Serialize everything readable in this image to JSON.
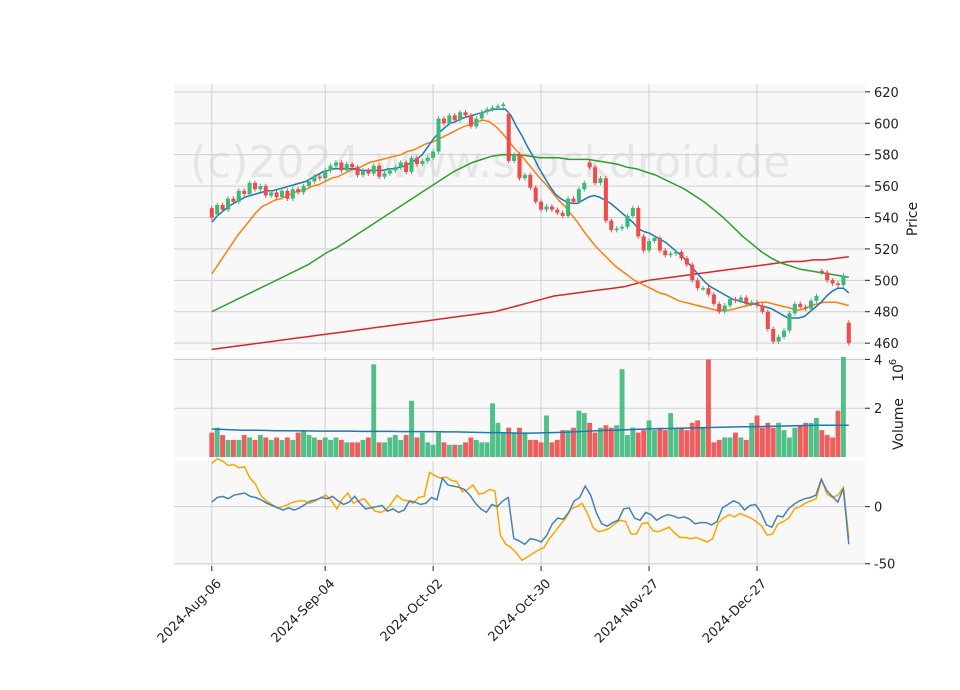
{
  "watermark": "(c)2024 www.stockdroid.de",
  "colors": {
    "up": "#3cb97a",
    "down": "#ee4b4b",
    "sma_short": "#1f77b4",
    "sma_mid": "#ff7f0e",
    "sma_long": "#2ca02c",
    "sma_200": "#d62728",
    "macd": "#4682b4",
    "signal": "#ffa500",
    "grid": "#d0d0d0",
    "panel_bg": "#f8f8f8"
  },
  "chart_data": [
    {
      "type": "candlestick",
      "ylabel": "Price",
      "ylim": [
        455,
        625
      ],
      "yticks": [
        460,
        480,
        500,
        520,
        540,
        560,
        580,
        600,
        620
      ],
      "x_tick_labels": [
        "2024-Aug-06",
        "2024-Sep-04",
        "2024-Oct-02",
        "2024-Oct-30",
        "2024-Nov-27",
        "2024-Dec-27"
      ],
      "x_tick_index": [
        0,
        21,
        41,
        61,
        81,
        101
      ],
      "x_range": [
        -7,
        121
      ],
      "close": [
        540,
        548,
        545,
        552,
        550,
        557,
        555,
        562,
        558,
        560,
        554,
        556,
        553,
        557,
        552,
        558,
        556,
        560,
        563,
        566,
        565,
        570,
        573,
        575,
        570,
        574,
        572,
        567,
        570,
        568,
        573,
        566,
        568,
        570,
        572,
        575,
        569,
        578,
        574,
        576,
        578,
        582,
        603,
        600,
        605,
        602,
        607,
        605,
        598,
        603,
        607,
        609,
        610,
        611,
        612,
        576,
        580,
        565,
        567,
        559,
        550,
        545,
        547,
        545,
        543,
        541,
        552,
        550,
        558,
        562,
        572,
        562,
        565,
        538,
        532,
        533,
        534,
        541,
        546,
        528,
        519,
        525,
        527,
        519,
        516,
        517,
        518,
        514,
        510,
        500,
        495,
        495,
        491,
        485,
        480,
        484,
        488,
        487,
        489,
        485,
        486,
        484,
        480,
        469,
        461,
        464,
        468,
        479,
        485,
        483,
        482,
        487,
        490,
        505,
        500,
        498,
        497,
        503,
        460
      ],
      "open": [
        546,
        542,
        548,
        545,
        552,
        550,
        557,
        555,
        562,
        558,
        560,
        554,
        556,
        553,
        557,
        552,
        558,
        556,
        560,
        563,
        566,
        565,
        570,
        573,
        575,
        570,
        574,
        572,
        567,
        570,
        568,
        573,
        566,
        568,
        570,
        572,
        575,
        569,
        578,
        574,
        576,
        578,
        582,
        603,
        600,
        605,
        602,
        607,
        605,
        598,
        603,
        607,
        609,
        610,
        611,
        606,
        576,
        580,
        565,
        567,
        559,
        550,
        545,
        547,
        545,
        543,
        541,
        552,
        550,
        558,
        575,
        572,
        562,
        565,
        538,
        532,
        533,
        534,
        541,
        546,
        528,
        519,
        525,
        527,
        519,
        516,
        517,
        518,
        514,
        510,
        500,
        495,
        495,
        491,
        485,
        480,
        484,
        488,
        487,
        489,
        485,
        486,
        484,
        480,
        469,
        461,
        464,
        468,
        479,
        485,
        483,
        482,
        487,
        506,
        505,
        500,
        498,
        497,
        473
      ],
      "sma20": [
        537,
        541,
        544,
        547,
        549,
        551,
        553,
        554,
        555,
        556,
        557,
        557,
        558,
        559,
        560,
        561,
        562,
        563,
        565,
        567,
        569,
        570,
        571,
        571,
        571,
        571,
        571,
        570,
        570,
        570,
        570,
        570,
        571,
        571,
        572,
        573,
        575,
        577,
        580,
        585,
        590,
        594,
        597,
        600,
        601,
        603,
        604,
        605,
        606,
        607,
        608,
        609,
        609,
        609,
        605,
        598,
        592,
        585,
        579,
        572,
        566,
        560,
        555,
        552,
        550,
        549,
        549,
        551,
        553,
        554,
        553,
        551,
        549,
        546,
        543,
        540,
        537,
        533,
        531,
        530,
        528,
        526,
        524,
        521,
        518,
        515,
        511,
        507,
        503,
        499,
        496,
        494,
        492,
        490,
        488,
        487,
        486,
        485,
        485,
        484,
        483,
        482,
        480,
        478,
        476,
        476,
        476,
        477,
        480,
        483,
        486,
        490,
        493,
        495,
        495,
        492
      ],
      "sma50": [
        504,
        510,
        516,
        522,
        528,
        533,
        538,
        543,
        547,
        549,
        551,
        552,
        554,
        556,
        557,
        558,
        560,
        561,
        563,
        565,
        566,
        568,
        570,
        571,
        573,
        575,
        576,
        577,
        578,
        579,
        580,
        582,
        583,
        585,
        587,
        588,
        590,
        592,
        594,
        596,
        598,
        599,
        601,
        602,
        601,
        598,
        594,
        589,
        584,
        580,
        575,
        570,
        565,
        561,
        556,
        551,
        547,
        542,
        537,
        531,
        526,
        521,
        517,
        513,
        509,
        506,
        503,
        500,
        498,
        496,
        494,
        492,
        491,
        489,
        487,
        486,
        485,
        484,
        483,
        482,
        481,
        481,
        481,
        482,
        483,
        484,
        485,
        486,
        486,
        485,
        484,
        483,
        482,
        481,
        482,
        484,
        485,
        486,
        486,
        486,
        485,
        484
      ],
      "sma100": [
        480,
        483,
        486,
        489,
        492,
        495,
        498,
        501,
        504,
        507,
        510,
        514,
        518,
        521,
        525,
        529,
        533,
        537,
        541,
        545,
        549,
        553,
        557,
        561,
        565,
        569,
        572,
        575,
        577,
        579,
        580,
        580,
        580,
        579,
        578,
        578,
        578,
        577,
        577,
        577,
        576,
        575,
        574,
        572,
        571,
        569,
        567,
        564,
        561,
        558,
        554,
        550,
        545,
        540,
        534,
        528,
        523,
        518,
        514,
        511,
        509,
        507,
        506,
        505,
        504,
        503,
        502
      ],
      "sma200": [
        456,
        457,
        458,
        459,
        460,
        461,
        462,
        463,
        464,
        465,
        466,
        467,
        468,
        469,
        470,
        471,
        472,
        473,
        474,
        475,
        476,
        477,
        478,
        479,
        480,
        482,
        484,
        486,
        488,
        490,
        491,
        492,
        493,
        494,
        495,
        496,
        498,
        500,
        501,
        502,
        503,
        504,
        505,
        506,
        507,
        508,
        509,
        510,
        511,
        512,
        512,
        513,
        513,
        514,
        515
      ]
    },
    {
      "type": "bar",
      "ylabel": "Volume",
      "unit_exponent": 6,
      "ylim": [
        0,
        4.1
      ],
      "yticks": [
        2,
        4
      ],
      "volume": [
        1.0,
        1.2,
        0.9,
        0.7,
        0.7,
        0.7,
        0.9,
        0.8,
        0.7,
        0.9,
        0.8,
        0.7,
        0.8,
        0.7,
        0.8,
        0.7,
        1.0,
        1.1,
        0.9,
        0.8,
        0.7,
        0.8,
        0.7,
        0.8,
        0.7,
        0.6,
        0.6,
        0.6,
        0.7,
        0.8,
        3.8,
        0.6,
        0.6,
        0.8,
        0.9,
        0.7,
        0.9,
        2.3,
        0.8,
        1.0,
        0.6,
        0.5,
        1.0,
        0.6,
        0.5,
        0.5,
        0.5,
        0.6,
        0.8,
        0.7,
        0.6,
        0.6,
        2.2,
        1.4,
        1.0,
        1.2,
        1.0,
        1.2,
        1.0,
        0.7,
        0.7,
        0.6,
        1.7,
        0.6,
        0.7,
        1.1,
        1.1,
        1.2,
        1.9,
        1.8,
        1.4,
        1.0,
        1.2,
        1.3,
        1.2,
        1.3,
        3.6,
        0.9,
        1.2,
        1.0,
        1.1,
        1.5,
        1.1,
        1.2,
        1.1,
        1.8,
        1.2,
        1.2,
        1.1,
        1.4,
        1.5,
        1.2,
        4.0,
        0.6,
        0.7,
        0.8,
        0.8,
        1.0,
        0.8,
        0.7,
        1.4,
        1.7,
        1.2,
        1.4,
        1.2,
        1.4,
        1.1,
        0.8,
        1.2,
        1.3,
        1.4,
        1.4,
        1.6,
        1.1,
        0.9,
        0.8,
        1.9,
        4.1
      ],
      "avg": [
        1.15,
        1.13,
        1.11,
        1.1,
        1.1,
        1.09,
        1.08,
        1.08,
        1.07,
        1.07,
        1.06,
        1.06,
        1.06,
        1.06,
        1.05,
        1.05,
        1.05,
        1.05,
        1.04,
        1.04,
        1.04,
        1.04,
        1.03,
        1.03,
        1.02,
        1.01,
        1.0,
        1.0,
        0.99,
        0.98,
        0.98,
        0.99,
        1.0,
        1.01,
        1.03,
        1.05,
        1.07,
        1.09,
        1.1,
        1.12,
        1.13,
        1.15,
        1.16,
        1.17,
        1.18,
        1.19,
        1.2,
        1.21,
        1.22,
        1.23,
        1.24,
        1.24,
        1.25,
        1.26,
        1.27,
        1.28,
        1.29,
        1.3,
        1.3,
        1.3,
        1.3
      ]
    },
    {
      "type": "line",
      "ylim": [
        -52,
        40
      ],
      "yticks": [
        -50,
        0
      ],
      "macd": [
        4,
        8,
        9,
        7,
        10,
        11,
        12,
        9,
        8,
        6,
        3,
        1,
        -1,
        -3,
        -1,
        -3,
        -1,
        2,
        5,
        6,
        8,
        7,
        9,
        5,
        2,
        4,
        9,
        3,
        -2,
        -1,
        0,
        1,
        -4,
        -2,
        -5,
        -3,
        5,
        4,
        2,
        3,
        8,
        6,
        25,
        19,
        18,
        17,
        15,
        10,
        3,
        -2,
        -5,
        2,
        0,
        5,
        8,
        -28,
        -30,
        -33,
        -28,
        -29,
        -31,
        -25,
        -15,
        -10,
        -11,
        -5,
        5,
        8,
        18,
        10,
        -5,
        -15,
        -17,
        -14,
        -12,
        -2,
        -1,
        -10,
        -12,
        -5,
        -7,
        -12,
        -9,
        -7,
        -8,
        -10,
        -9,
        -11,
        -15,
        -14,
        -14,
        -16,
        -13,
        -1,
        2,
        5,
        3,
        -3,
        1,
        2,
        -5,
        -16,
        -18,
        -8,
        -9,
        -2,
        2,
        5,
        7,
        8,
        10,
        24,
        14,
        9,
        4,
        16,
        -33
      ],
      "signal": [
        38,
        42,
        40,
        36,
        37,
        34,
        35,
        25,
        20,
        10,
        5,
        2,
        -1,
        0,
        2,
        4,
        5,
        5,
        3,
        5,
        8,
        10,
        5,
        -2,
        7,
        12,
        3,
        5,
        7,
        1,
        -4,
        -5,
        -3,
        3,
        10,
        6,
        5,
        3,
        8,
        9,
        30,
        27,
        25,
        26,
        23,
        22,
        13,
        15,
        19,
        11,
        12,
        15,
        14,
        -25,
        -33,
        -36,
        -41,
        -47,
        -44,
        -41,
        -38,
        -36,
        -28,
        -22,
        -16,
        -10,
        -2,
        0,
        3,
        -6,
        -18,
        -22,
        -21,
        -19,
        -15,
        -12,
        -13,
        -24,
        -24,
        -15,
        -14,
        -21,
        -22,
        -20,
        -18,
        -23,
        -27,
        -27,
        -28,
        -27,
        -29,
        -31,
        -28,
        -14,
        -10,
        -7,
        -9,
        -6,
        -8,
        -10,
        -13,
        -17,
        -25,
        -24,
        -15,
        -13,
        -10,
        -2,
        0,
        3,
        5,
        7,
        24,
        11,
        8,
        10,
        17,
        -28
      ]
    }
  ]
}
